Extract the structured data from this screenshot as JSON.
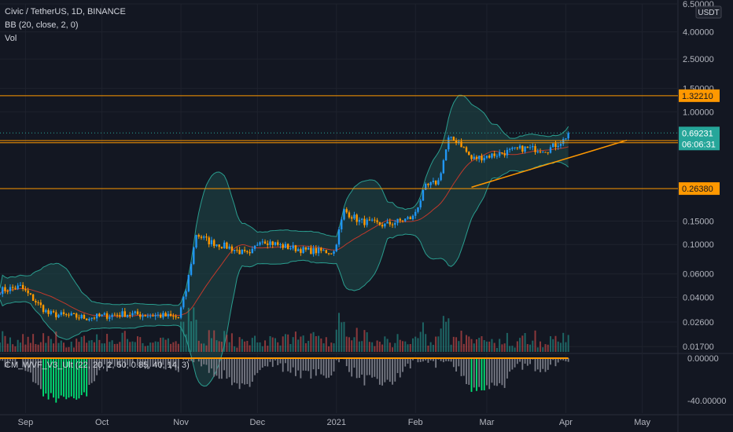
{
  "header": {
    "symbol_line": "Civic / TetherUS, 1D, BINANCE",
    "bb_line": "BB (20, close, 2, 0)",
    "vol_line": "Vol",
    "indicator_line": "CM_WVF_V3_Ult (22, 20, 2, 50, 0.85, 40, 14, 3)",
    "currency_badge": "USDT"
  },
  "colors": {
    "background": "#131722",
    "up": "#26a69a",
    "down": "#ef5350",
    "candle_up": "#2196f3",
    "candle_down": "#ff9800",
    "bb_fill": "#1f4a4a",
    "bb_band": "#2a9d8f",
    "bb_basis": "#c0392b",
    "level_line": "#ff9800",
    "wvf_gray": "#787b86",
    "wvf_green": "#00e676"
  },
  "chart_data": [
    {
      "type": "candlestick",
      "title": "Civic / TetherUS, 1D, BINANCE",
      "y_scale": "log",
      "ylim": [
        0.0155,
        6.5
      ],
      "y_ticks": [
        "6.50000",
        "4.00000",
        "2.50000",
        "1.50000",
        "1.00000",
        "0.15000",
        "0.10000",
        "0.06000",
        "0.04000",
        "0.02600",
        "0.01700"
      ],
      "x_ticks": [
        "Sep",
        "Oct",
        "Nov",
        "Dec",
        "2021",
        "Feb",
        "Mar",
        "Apr",
        "May"
      ],
      "x_range": [
        "2020-08-22",
        "2021-05-15"
      ],
      "price_anchors": [
        {
          "date": "2020-08-22",
          "close": 0.045
        },
        {
          "date": "2020-08-30",
          "close": 0.048
        },
        {
          "date": "2020-09-10",
          "close": 0.03
        },
        {
          "date": "2020-09-25",
          "close": 0.028
        },
        {
          "date": "2020-10-10",
          "close": 0.03
        },
        {
          "date": "2020-10-25",
          "close": 0.029
        },
        {
          "date": "2020-10-31",
          "close": 0.028
        },
        {
          "date": "2020-11-03",
          "close": 0.045
        },
        {
          "date": "2020-11-07",
          "close": 0.12
        },
        {
          "date": "2020-11-12",
          "close": 0.105
        },
        {
          "date": "2020-11-20",
          "close": 0.095
        },
        {
          "date": "2020-11-28",
          "close": 0.082
        },
        {
          "date": "2020-12-02",
          "close": 0.11
        },
        {
          "date": "2020-12-10",
          "close": 0.098
        },
        {
          "date": "2020-12-20",
          "close": 0.09
        },
        {
          "date": "2020-12-31",
          "close": 0.088
        },
        {
          "date": "2021-01-04",
          "close": 0.18
        },
        {
          "date": "2021-01-10",
          "close": 0.15
        },
        {
          "date": "2021-01-20",
          "close": 0.14
        },
        {
          "date": "2021-01-31",
          "close": 0.16
        },
        {
          "date": "2021-02-05",
          "close": 0.27
        },
        {
          "date": "2021-02-10",
          "close": 0.3
        },
        {
          "date": "2021-02-14",
          "close": 0.62
        },
        {
          "date": "2021-02-18",
          "close": 0.6
        },
        {
          "date": "2021-02-23",
          "close": 0.44
        },
        {
          "date": "2021-03-05",
          "close": 0.48
        },
        {
          "date": "2021-03-15",
          "close": 0.53
        },
        {
          "date": "2021-03-25",
          "close": 0.52
        },
        {
          "date": "2021-03-31",
          "close": 0.61
        },
        {
          "date": "2021-04-02",
          "close": 0.692
        }
      ],
      "horizontal_levels": [
        "1.32210",
        "0.60649",
        "0.58400",
        "0.26380"
      ],
      "last_price": {
        "value": "0.69231",
        "countdown": "06:06:31"
      },
      "trendline": {
        "from": {
          "date": "2021-02-23",
          "price": 0.27
        },
        "to": {
          "date": "2021-04-25",
          "price": 0.61
        }
      }
    },
    {
      "type": "bar",
      "title": "CM_WVF_V3_Ult (22, 20, 2, 50, 0.85, 40, 14, 3)",
      "ylim": [
        -52,
        3
      ],
      "y_ticks": [
        "0.00000",
        "-40.00000"
      ]
    }
  ]
}
